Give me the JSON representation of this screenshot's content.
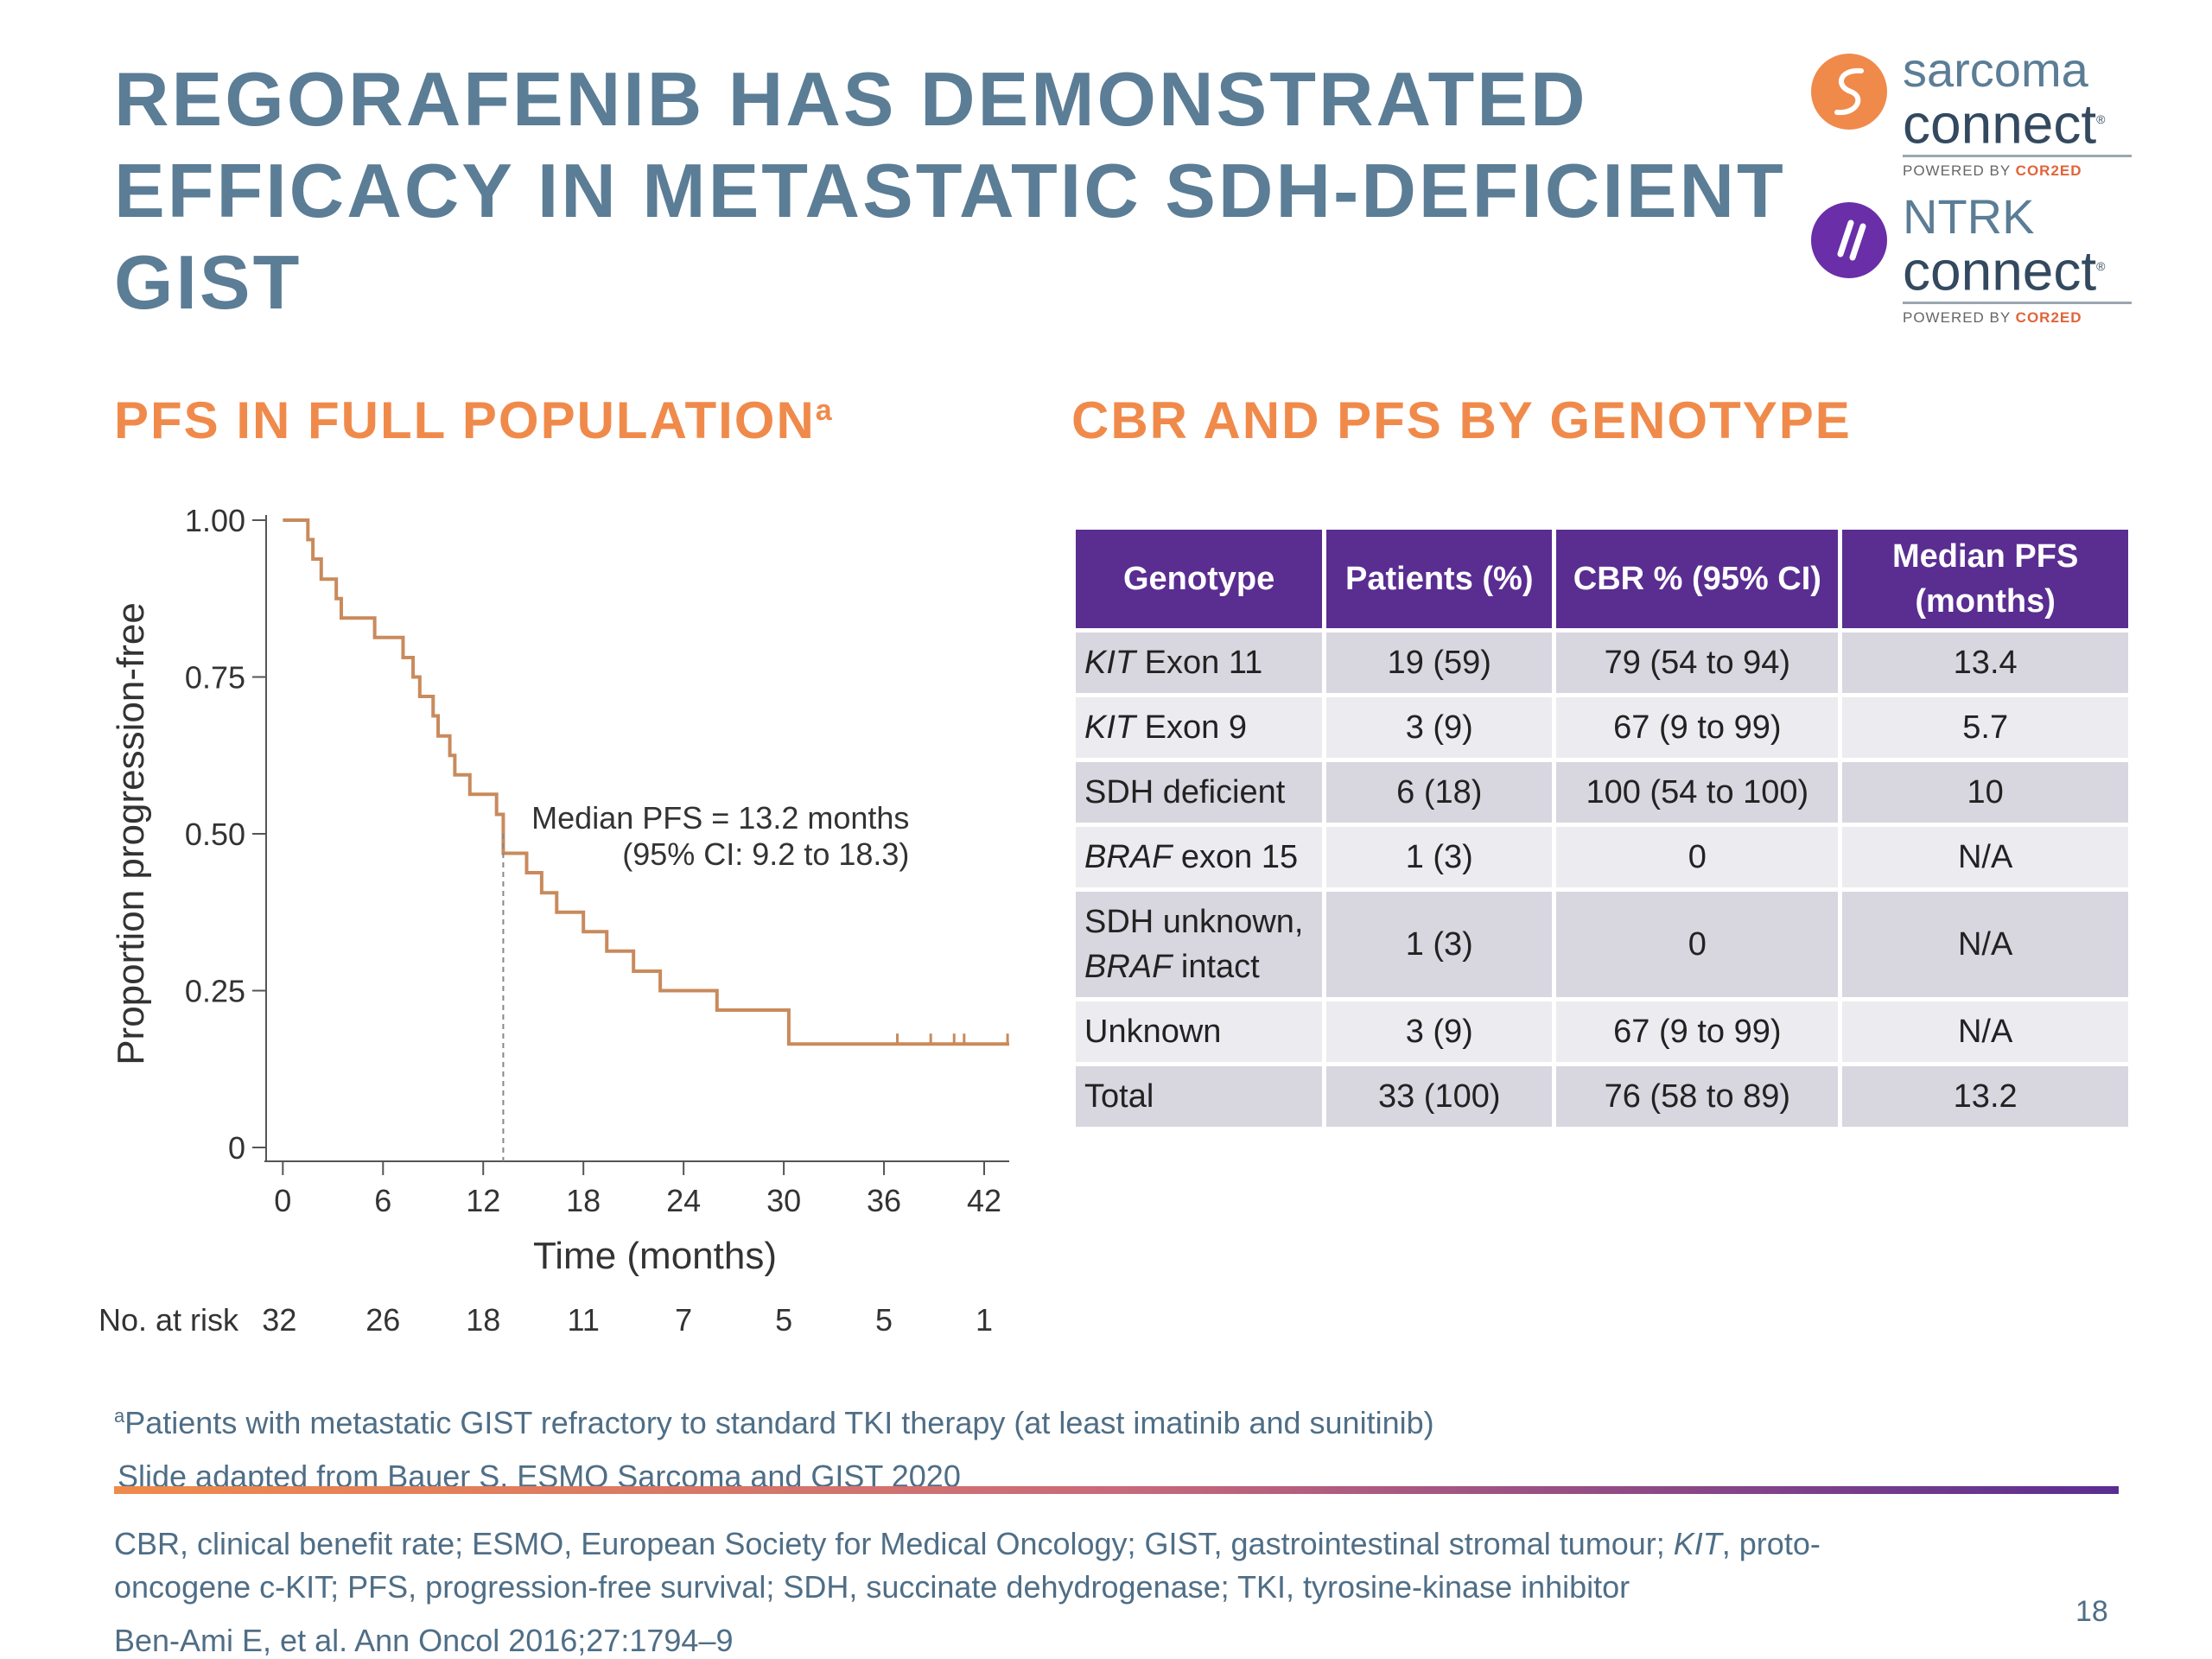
{
  "title": {
    "lines": [
      "REGORAFENIB HAS DEMONSTRATED",
      "EFFICACY IN METASTATIC SDH-DEFICIENT",
      "GIST"
    ]
  },
  "logos": {
    "sarcoma": {
      "line1": "sarcoma",
      "line2": "connect",
      "mark": "®",
      "powered": "POWERED BY",
      "brand": "COR2ED"
    },
    "ntrk": {
      "line1": "NTRK",
      "line2": "connect",
      "mark": "®",
      "powered": "POWERED BY",
      "brand": "COR2ED"
    }
  },
  "left_heading": {
    "text": "PFS IN FULL POPULATION",
    "sup": "a"
  },
  "right_heading": "CBR AND PFS BY GENOTYPE",
  "chart_data": {
    "type": "line",
    "title": "",
    "xlabel": "Time (months)",
    "ylabel": "Proportion progression-free",
    "xlim": [
      -1,
      43.5
    ],
    "ylim": [
      0,
      1.0
    ],
    "x_ticks": [
      0,
      6,
      12,
      18,
      24,
      30,
      36,
      42
    ],
    "y_ticks": [
      0,
      0.25,
      0.5,
      0.75,
      1.0
    ],
    "y_tick_labels": [
      "0",
      "0.25",
      "0.50",
      "0.75",
      "1.00"
    ],
    "series": [
      {
        "step": true,
        "color": "#c98a5c",
        "x": [
          0,
          1.5,
          1.8,
          2.3,
          3.2,
          3.5,
          5.5,
          7.2,
          7.8,
          8.2,
          9.0,
          9.3,
          10.0,
          10.3,
          11.2,
          12.8,
          13.2,
          14.6,
          15.5,
          16.4,
          18.0,
          19.4,
          21.0,
          22.6,
          26.0,
          30.3,
          43.5
        ],
        "y": [
          1.0,
          0.969,
          0.938,
          0.906,
          0.875,
          0.844,
          0.813,
          0.781,
          0.75,
          0.719,
          0.688,
          0.656,
          0.625,
          0.594,
          0.563,
          0.531,
          0.469,
          0.438,
          0.406,
          0.375,
          0.344,
          0.313,
          0.281,
          0.25,
          0.219,
          0.165,
          0.165
        ]
      }
    ],
    "censor_x": [
      36.8,
      38.8,
      40.2,
      40.8,
      43.4
    ],
    "censor_y": 0.165,
    "median_x": 13.2,
    "median_y": 0.5,
    "annotation": [
      "Median PFS = 13.2 months",
      "(95% CI: 9.2 to 18.3)"
    ],
    "risk_label": "No. at risk",
    "risk_x": [
      0,
      6,
      12,
      18,
      24,
      30,
      36,
      42
    ],
    "risk_values": [
      "32",
      "26",
      "18",
      "11",
      "7",
      "5",
      "5",
      "1"
    ],
    "grid": false,
    "legend": "none"
  },
  "table": {
    "headers": [
      "Genotype",
      "Patients (%)",
      "CBR % (95% CI)",
      "Median PFS (months)"
    ],
    "rows": [
      {
        "genotype_italic": "KIT",
        "genotype_rest": " Exon 11",
        "patients": "19 (59)",
        "cbr": "79 (54 to 94)",
        "pfs": "13.4"
      },
      {
        "genotype_italic": "KIT",
        "genotype_rest": " Exon 9",
        "patients": "3 (9)",
        "cbr": "67 (9 to 99)",
        "pfs": "5.7"
      },
      {
        "genotype_italic": "",
        "genotype_rest": "SDH deficient",
        "patients": "6 (18)",
        "cbr": "100 (54 to 100)",
        "pfs": "10"
      },
      {
        "genotype_italic": "BRAF",
        "genotype_rest": " exon 15",
        "patients": "1 (3)",
        "cbr": "0",
        "pfs": "N/A"
      },
      {
        "genotype_line1": "SDH unknown,",
        "genotype_italic": "BRAF",
        "genotype_rest": " intact",
        "patients": "1 (3)",
        "cbr": "0",
        "pfs": "N/A"
      },
      {
        "genotype_italic": "",
        "genotype_rest": "Unknown",
        "patients": "3 (9)",
        "cbr": "67 (9 to 99)",
        "pfs": "N/A"
      },
      {
        "genotype_italic": "",
        "genotype_rest": "Total",
        "patients": "33 (100)",
        "cbr": "76 (58 to 89)",
        "pfs": "13.2"
      }
    ]
  },
  "footnotes": {
    "note_sup": "a",
    "note": "Patients with metastatic GIST refractory to standard TKI therapy (at least imatinib and sunitinib)",
    "adapted": "Slide adapted from Bauer S. ESMO Sarcoma and GIST 2020",
    "abbrev_1a": "CBR, clinical benefit rate; ESMO, European Society for Medical Oncology; GIST, gastrointestinal stromal tumour; ",
    "abbrev_1b": "KIT",
    "abbrev_1c": ", proto-",
    "abbrev_2": "oncogene c-KIT; PFS, progression-free survival; SDH, succinate dehydrogenase; TKI, tyrosine-kinase inhibitor",
    "reference": "Ben-Ami E, et al. Ann Oncol 2016;27:1794–9",
    "page_number": "18"
  }
}
